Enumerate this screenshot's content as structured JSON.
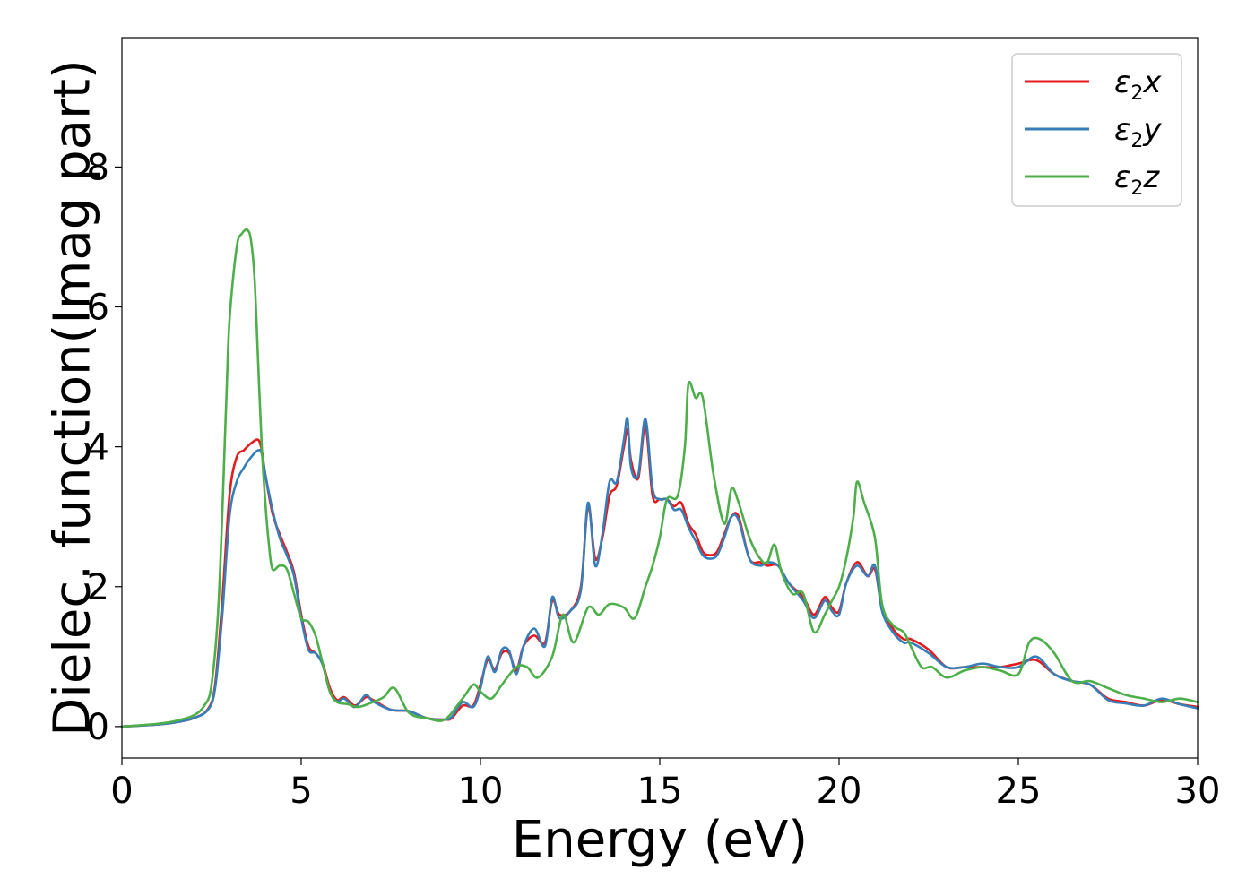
{
  "chart_data": {
    "type": "line",
    "xlabel": "Energy (eV)",
    "ylabel": "Dielec. function(Imag part)",
    "xlim": [
      0,
      30
    ],
    "ylim": [
      -0.45,
      9.85
    ],
    "xticks": [
      0,
      5,
      10,
      15,
      20,
      25,
      30
    ],
    "yticks": [
      0,
      2,
      4,
      6,
      8
    ],
    "grid": false,
    "legend_position": "top-right",
    "series": [
      {
        "name": "ε2x",
        "legend": {
          "main": "ε",
          "sub": "2",
          "suffix": "x"
        },
        "color": "#e41a1c",
        "x": [
          0,
          1,
          1.5,
          2,
          2.4,
          2.6,
          2.8,
          3.0,
          3.2,
          3.4,
          3.6,
          3.8,
          3.9,
          4.0,
          4.2,
          4.4,
          4.6,
          4.8,
          5.0,
          5.2,
          5.4,
          5.6,
          5.8,
          6.0,
          6.2,
          6.5,
          6.8,
          7.0,
          7.5,
          8.0,
          8.5,
          9.0,
          9.2,
          9.5,
          9.8,
          10.0,
          10.2,
          10.4,
          10.6,
          10.8,
          11.0,
          11.2,
          11.5,
          11.8,
          12.0,
          12.2,
          12.5,
          12.8,
          13.0,
          13.2,
          13.4,
          13.6,
          13.8,
          14.0,
          14.1,
          14.2,
          14.4,
          14.6,
          14.8,
          15.0,
          15.2,
          15.4,
          15.6,
          15.8,
          16.0,
          16.2,
          16.4,
          16.6,
          16.8,
          17.0,
          17.2,
          17.5,
          17.8,
          18.0,
          18.3,
          18.6,
          19.0,
          19.3,
          19.6,
          19.8,
          20.0,
          20.2,
          20.5,
          20.8,
          21.0,
          21.2,
          21.5,
          21.8,
          22.0,
          22.5,
          23.0,
          23.5,
          24.0,
          24.5,
          25.0,
          25.5,
          26.0,
          26.5,
          27.0,
          27.5,
          28.0,
          28.5,
          29.0,
          29.5,
          30.0
        ],
        "values": [
          0,
          0.03,
          0.06,
          0.12,
          0.25,
          0.6,
          1.8,
          3.3,
          3.85,
          3.95,
          4.05,
          4.1,
          3.95,
          3.6,
          3.05,
          2.75,
          2.5,
          2.2,
          1.6,
          1.15,
          1.05,
          0.9,
          0.55,
          0.38,
          0.42,
          0.3,
          0.42,
          0.38,
          0.24,
          0.22,
          0.12,
          0.1,
          0.12,
          0.3,
          0.3,
          0.6,
          0.95,
          0.82,
          1.05,
          1.05,
          0.8,
          1.15,
          1.3,
          1.2,
          1.8,
          1.6,
          1.65,
          2.0,
          3.15,
          2.4,
          2.7,
          3.3,
          3.45,
          4.0,
          4.25,
          3.8,
          3.55,
          4.3,
          3.3,
          3.25,
          3.25,
          3.15,
          3.2,
          2.9,
          2.75,
          2.5,
          2.45,
          2.5,
          2.75,
          3.0,
          3.0,
          2.4,
          2.35,
          2.3,
          2.3,
          2.05,
          1.85,
          1.6,
          1.85,
          1.7,
          1.65,
          2.05,
          2.35,
          2.15,
          2.25,
          1.7,
          1.4,
          1.25,
          1.25,
          1.1,
          0.85,
          0.85,
          0.85,
          0.85,
          0.9,
          0.95,
          0.75,
          0.65,
          0.6,
          0.4,
          0.35,
          0.3,
          0.38,
          0.32,
          0.28
        ]
      },
      {
        "name": "ε2y",
        "legend": {
          "main": "ε",
          "sub": "2",
          "suffix": "y"
        },
        "color": "#377eb8",
        "x": [
          0,
          1,
          1.5,
          2,
          2.4,
          2.6,
          2.8,
          3.0,
          3.2,
          3.4,
          3.6,
          3.8,
          3.9,
          4.0,
          4.2,
          4.4,
          4.6,
          4.8,
          5.0,
          5.2,
          5.4,
          5.6,
          5.8,
          6.0,
          6.2,
          6.5,
          6.8,
          7.0,
          7.5,
          8.0,
          8.5,
          9.0,
          9.2,
          9.5,
          9.8,
          10.0,
          10.2,
          10.4,
          10.6,
          10.8,
          11.0,
          11.2,
          11.5,
          11.8,
          12.0,
          12.2,
          12.5,
          12.8,
          13.0,
          13.2,
          13.4,
          13.6,
          13.8,
          14.0,
          14.1,
          14.2,
          14.4,
          14.6,
          14.8,
          15.0,
          15.2,
          15.4,
          15.6,
          15.8,
          16.0,
          16.2,
          16.4,
          16.6,
          16.8,
          17.0,
          17.2,
          17.5,
          17.8,
          18.0,
          18.3,
          18.6,
          19.0,
          19.3,
          19.6,
          19.8,
          20.0,
          20.2,
          20.5,
          20.8,
          21.0,
          21.2,
          21.5,
          21.8,
          22.0,
          22.5,
          23.0,
          23.5,
          24.0,
          24.5,
          25.0,
          25.5,
          26.0,
          26.5,
          27.0,
          27.5,
          28.0,
          28.5,
          29.0,
          29.5,
          30.0
        ],
        "values": [
          0,
          0.03,
          0.06,
          0.12,
          0.24,
          0.55,
          1.6,
          3.0,
          3.5,
          3.7,
          3.85,
          3.95,
          3.9,
          3.6,
          3.1,
          2.7,
          2.45,
          2.15,
          1.55,
          1.1,
          1.05,
          0.88,
          0.5,
          0.36,
          0.4,
          0.28,
          0.45,
          0.36,
          0.24,
          0.22,
          0.12,
          0.1,
          0.14,
          0.35,
          0.28,
          0.55,
          1.0,
          0.78,
          1.1,
          1.08,
          0.75,
          1.15,
          1.4,
          1.15,
          1.85,
          1.55,
          1.65,
          1.95,
          3.2,
          2.3,
          2.75,
          3.5,
          3.5,
          4.1,
          4.4,
          3.7,
          3.6,
          4.4,
          3.4,
          3.25,
          3.25,
          3.1,
          3.1,
          2.85,
          2.65,
          2.45,
          2.4,
          2.45,
          2.7,
          3.0,
          2.95,
          2.4,
          2.3,
          2.35,
          2.3,
          2.05,
          1.8,
          1.55,
          1.8,
          1.65,
          1.6,
          2.05,
          2.3,
          2.15,
          2.3,
          1.65,
          1.35,
          1.2,
          1.2,
          1.05,
          0.85,
          0.85,
          0.9,
          0.85,
          0.85,
          1.0,
          0.75,
          0.65,
          0.6,
          0.38,
          0.33,
          0.3,
          0.4,
          0.32,
          0.26
        ]
      },
      {
        "name": "ε2z",
        "legend": {
          "main": "ε",
          "sub": "2",
          "suffix": "z"
        },
        "color": "#4daf4a",
        "x": [
          0,
          1,
          1.5,
          2,
          2.3,
          2.5,
          2.7,
          2.9,
          3.0,
          3.2,
          3.35,
          3.5,
          3.6,
          3.7,
          3.8,
          3.9,
          4.0,
          4.1,
          4.2,
          4.4,
          4.6,
          4.8,
          5.0,
          5.2,
          5.4,
          5.6,
          5.8,
          6.0,
          6.3,
          6.6,
          7.0,
          7.3,
          7.6,
          8.0,
          8.5,
          9.0,
          9.5,
          9.8,
          10.0,
          10.3,
          10.6,
          11.0,
          11.3,
          11.6,
          12.0,
          12.3,
          12.6,
          13.0,
          13.3,
          13.6,
          14.0,
          14.3,
          14.6,
          14.8,
          15.0,
          15.2,
          15.5,
          15.7,
          15.8,
          16.0,
          16.2,
          16.5,
          16.8,
          17.0,
          17.2,
          17.5,
          17.8,
          18.0,
          18.2,
          18.4,
          18.7,
          19.0,
          19.3,
          19.6,
          19.8,
          20.0,
          20.2,
          20.4,
          20.5,
          20.7,
          21.0,
          21.2,
          21.5,
          21.8,
          22.0,
          22.3,
          22.6,
          23.0,
          23.5,
          24.0,
          24.5,
          25.0,
          25.3,
          25.6,
          26.0,
          26.5,
          27.0,
          27.5,
          28.0,
          28.5,
          29.0,
          29.5,
          30.0
        ],
        "values": [
          0,
          0.04,
          0.08,
          0.16,
          0.3,
          0.6,
          1.8,
          4.5,
          5.8,
          6.85,
          7.05,
          7.1,
          6.95,
          6.4,
          5.2,
          4.0,
          3.2,
          2.6,
          2.25,
          2.3,
          2.25,
          1.9,
          1.55,
          1.5,
          1.3,
          0.9,
          0.5,
          0.35,
          0.32,
          0.28,
          0.35,
          0.42,
          0.55,
          0.2,
          0.12,
          0.1,
          0.4,
          0.6,
          0.5,
          0.4,
          0.6,
          0.85,
          0.85,
          0.7,
          1.0,
          1.6,
          1.2,
          1.7,
          1.6,
          1.75,
          1.7,
          1.55,
          2.0,
          2.3,
          2.7,
          3.25,
          3.3,
          4.0,
          4.9,
          4.7,
          4.7,
          3.6,
          2.9,
          3.4,
          3.2,
          2.7,
          2.4,
          2.35,
          2.6,
          2.2,
          1.9,
          1.9,
          1.35,
          1.6,
          1.8,
          2.0,
          2.4,
          3.0,
          3.5,
          3.2,
          2.7,
          1.75,
          1.45,
          1.35,
          1.15,
          0.85,
          0.85,
          0.7,
          0.8,
          0.85,
          0.8,
          0.75,
          1.2,
          1.25,
          1.05,
          0.65,
          0.65,
          0.55,
          0.45,
          0.4,
          0.35,
          0.4,
          0.35
        ]
      }
    ]
  }
}
